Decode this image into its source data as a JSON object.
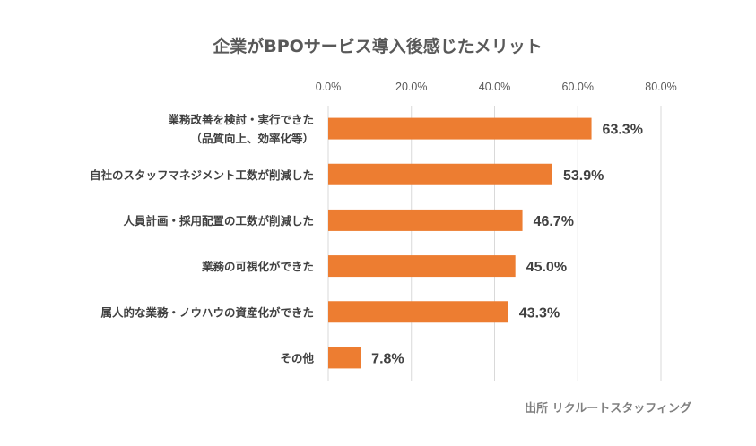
{
  "chart_data": {
    "type": "bar",
    "orientation": "horizontal",
    "title": "企業がBPOサービス導入後感じたメリット",
    "categories": [
      [
        "業務改善を検討・実行できた",
        "（品質向上、効率化等）"
      ],
      [
        "自社のスタッフマネジメント工数が削減した"
      ],
      [
        "人員計画・採用配置の工数が削減した"
      ],
      [
        "業務の可視化ができた"
      ],
      [
        "属人的な業務・ノウハウの資産化ができた"
      ],
      [
        "その他"
      ]
    ],
    "values": [
      63.3,
      53.9,
      46.7,
      45.0,
      43.3,
      7.8
    ],
    "value_labels": [
      "63.3%",
      "53.9%",
      "46.7%",
      "45.0%",
      "43.3%",
      "7.8%"
    ],
    "xlim": [
      0,
      80
    ],
    "xticks": [
      0,
      20,
      40,
      60,
      80
    ],
    "xtick_labels": [
      "0.0%",
      "20.0%",
      "40.0%",
      "60.0%",
      "80.0%"
    ],
    "xlabel": "",
    "ylabel": "",
    "grid": true,
    "axis_position": "top",
    "bar_color": "#ed7d31",
    "source": "出所 リクルートスタッフィング"
  }
}
